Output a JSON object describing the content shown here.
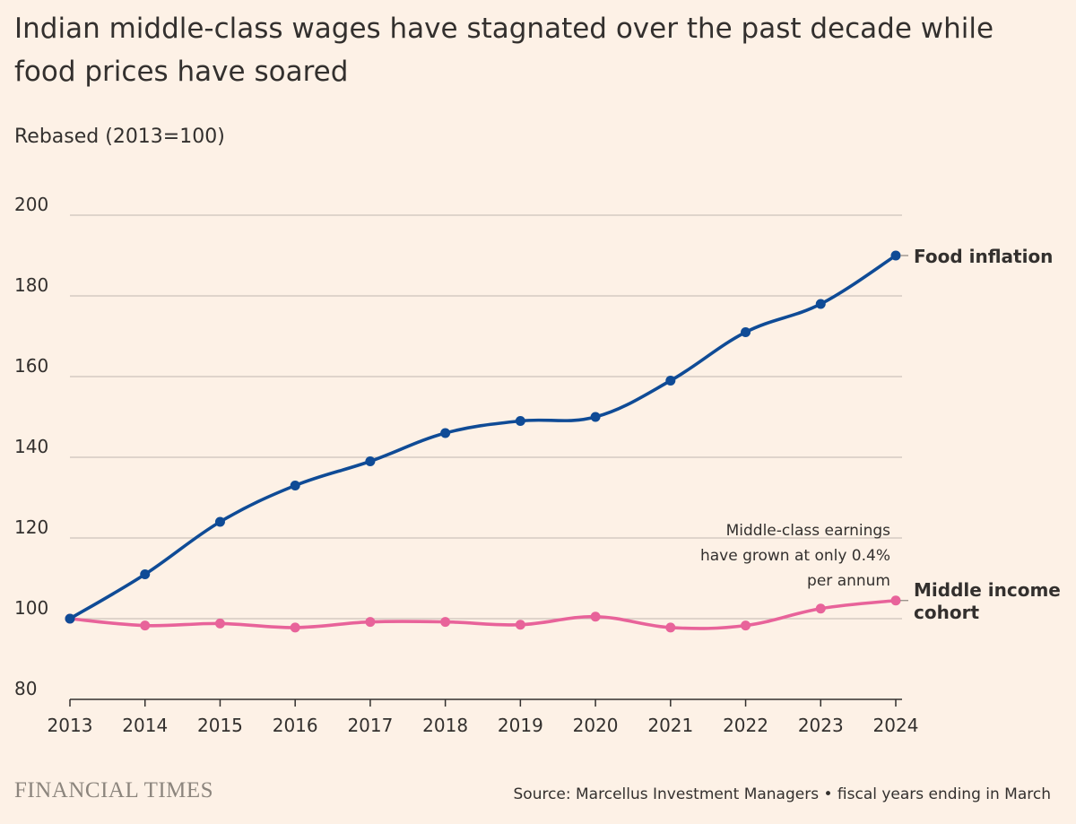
{
  "chart_data": {
    "type": "line",
    "title": "Indian middle-class wages have stagnated over the past decade while food prices have soared",
    "subtitle": "Rebased (2013=100)",
    "x": [
      2013,
      2014,
      2015,
      2016,
      2017,
      2018,
      2019,
      2020,
      2021,
      2022,
      2023,
      2024
    ],
    "x_tick_labels": [
      "2013",
      "2014",
      "2015",
      "2016",
      "2017",
      "2018",
      "2019",
      "2020",
      "2021",
      "2022",
      "2023",
      "2024"
    ],
    "ylim": [
      80,
      200
    ],
    "y_ticks": [
      80,
      100,
      120,
      140,
      160,
      180,
      200
    ],
    "y_tick_labels": [
      "80",
      "100",
      "120",
      "140",
      "160",
      "180",
      "200"
    ],
    "grid": true,
    "legend": "direct labels at line ends (right)",
    "series": [
      {
        "name": "Food inflation",
        "color": "#0f4b96",
        "values": [
          100,
          111,
          124,
          133,
          139,
          146,
          149,
          150,
          159,
          171,
          178,
          190
        ]
      },
      {
        "name": "Middle income cohort",
        "label_lines": [
          "Middle income",
          "cohort"
        ],
        "color": "#e8639a",
        "values": [
          100,
          98.3,
          98.8,
          97.8,
          99.2,
          99.2,
          98.5,
          100.5,
          97.8,
          98.3,
          102.5,
          104.5
        ]
      }
    ],
    "annotation": {
      "lines": [
        "Middle-class earnings",
        "have grown at only 0.4%",
        "per annum"
      ]
    }
  },
  "footer": {
    "brand": "FINANCIAL TIMES",
    "source": "Source: Marcellus Investment Managers • fiscal years ending in March"
  },
  "colors": {
    "background": "#fdf1e6",
    "grid": "#cdc4bb",
    "axis": "#33302e"
  }
}
